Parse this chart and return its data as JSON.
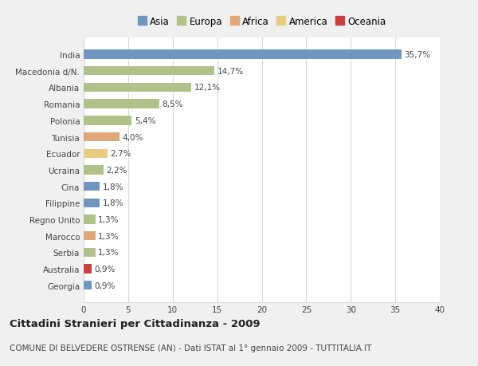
{
  "countries": [
    "India",
    "Macedonia d/N.",
    "Albania",
    "Romania",
    "Polonia",
    "Tunisia",
    "Ecuador",
    "Ucraina",
    "Cina",
    "Filippine",
    "Regno Unito",
    "Marocco",
    "Serbia",
    "Australia",
    "Georgia"
  ],
  "values": [
    35.7,
    14.7,
    12.1,
    8.5,
    5.4,
    4.0,
    2.7,
    2.2,
    1.8,
    1.8,
    1.3,
    1.3,
    1.3,
    0.9,
    0.9
  ],
  "labels": [
    "35,7%",
    "14,7%",
    "12,1%",
    "8,5%",
    "5,4%",
    "4,0%",
    "2,7%",
    "2,2%",
    "1,8%",
    "1,8%",
    "1,3%",
    "1,3%",
    "1,3%",
    "0,9%",
    "0,9%"
  ],
  "colors": [
    "#7096c0",
    "#b0c18a",
    "#b0c18a",
    "#b0c18a",
    "#b0c18a",
    "#e0a878",
    "#e8cc80",
    "#b0c18a",
    "#7096c0",
    "#7096c0",
    "#b0c18a",
    "#e0a878",
    "#b0c18a",
    "#c84040",
    "#7096c0"
  ],
  "legend_labels": [
    "Asia",
    "Europa",
    "Africa",
    "America",
    "Oceania"
  ],
  "legend_colors": [
    "#7096c0",
    "#b0c18a",
    "#e0a878",
    "#e8cc80",
    "#c84040"
  ],
  "title1": "Cittadini Stranieri per Cittadinanza - 2009",
  "title2": "COMUNE DI BELVEDERE OSTRENSE (AN) - Dati ISTAT al 1° gennaio 2009 - TUTTITALIA.IT",
  "xlim": [
    0,
    40
  ],
  "xticks": [
    0,
    5,
    10,
    15,
    20,
    25,
    30,
    35,
    40
  ],
  "background_color": "#f0f0f0",
  "plot_bg_color": "#ffffff",
  "grid_color": "#d8d8d8",
  "bar_height": 0.55,
  "label_fontsize": 7.5,
  "tick_fontsize": 7.5,
  "title1_fontsize": 9.5,
  "title2_fontsize": 7.5
}
